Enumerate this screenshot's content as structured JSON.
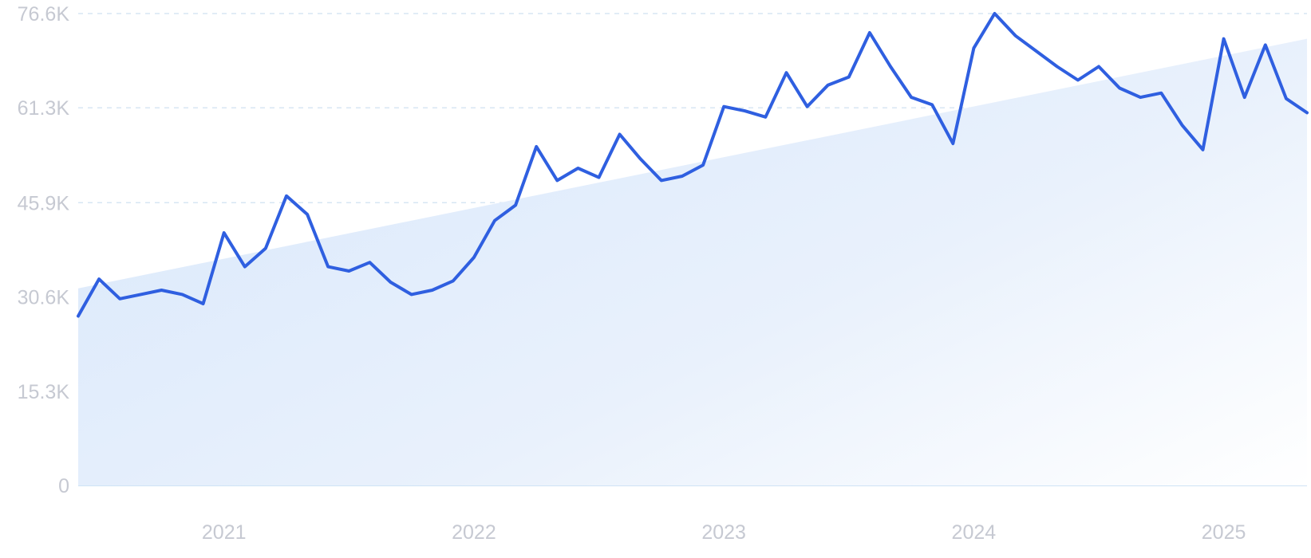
{
  "chart_data": {
    "type": "line",
    "title": "",
    "xlabel": "",
    "ylabel": "",
    "x_tick_labels": [
      "2021",
      "2022",
      "2023",
      "2024",
      "2025"
    ],
    "y_tick_labels": [
      "0",
      "15.3K",
      "30.6K",
      "45.9K",
      "61.3K",
      "76.6K"
    ],
    "y_tick_values": [
      0,
      15300,
      30600,
      45900,
      61300,
      76600
    ],
    "ylim": [
      0,
      76600
    ],
    "xlim": [
      "2020-06",
      "2025-05"
    ],
    "grid": true,
    "legend": "none",
    "colors": {
      "line": "#2f5fe0",
      "area_start": "#dbe9fb",
      "area_end": "#ffffff",
      "grid": "#d7e6f3",
      "tick_text": "#c6c9d2"
    },
    "x": [
      "2020-06",
      "2020-07",
      "2020-08",
      "2020-09",
      "2020-10",
      "2020-11",
      "2020-12",
      "2021-01",
      "2021-02",
      "2021-03",
      "2021-04",
      "2021-05",
      "2021-06",
      "2021-07",
      "2021-08",
      "2021-09",
      "2021-10",
      "2021-11",
      "2021-12",
      "2022-01",
      "2022-02",
      "2022-03",
      "2022-04",
      "2022-05",
      "2022-06",
      "2022-07",
      "2022-08",
      "2022-09",
      "2022-10",
      "2022-11",
      "2022-12",
      "2023-01",
      "2023-02",
      "2023-03",
      "2023-04",
      "2023-05",
      "2023-06",
      "2023-07",
      "2023-08",
      "2023-09",
      "2023-10",
      "2023-11",
      "2023-12",
      "2024-01",
      "2024-02",
      "2024-03",
      "2024-04",
      "2024-05",
      "2024-06",
      "2024-07",
      "2024-08",
      "2024-09",
      "2024-10",
      "2024-11",
      "2024-12",
      "2025-01",
      "2025-02",
      "2025-03",
      "2025-04",
      "2025-05"
    ],
    "series": [
      {
        "values": [
          27500,
          33500,
          30300,
          31000,
          31700,
          31000,
          29500,
          41000,
          35500,
          38500,
          47000,
          44000,
          35500,
          34800,
          36200,
          33000,
          31000,
          31700,
          33200,
          37000,
          43000,
          45500,
          55000,
          49500,
          51500,
          50000,
          57000,
          53000,
          49500,
          50200,
          52000,
          61500,
          60800,
          59800,
          67000,
          61500,
          65000,
          66300,
          73500,
          68000,
          63000,
          61800,
          55500,
          71000,
          76600,
          73000,
          70500,
          68000,
          65800,
          68000,
          64500,
          63000,
          63700,
          58500,
          54500,
          72500,
          63000,
          71500,
          62800,
          60500
        ]
      }
    ],
    "trend": {
      "start": 32000,
      "end": 72500
    }
  }
}
